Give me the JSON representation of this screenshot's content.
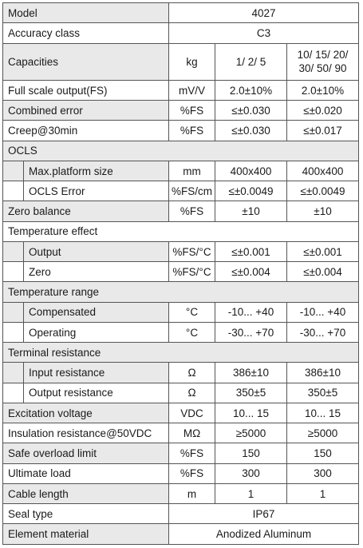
{
  "colors": {
    "label_shade": "#e9e9e9",
    "grid": "#555555",
    "text": "#1a1a1a"
  },
  "table": {
    "rows": [
      {
        "type": "full",
        "label": "Model",
        "value": "4027",
        "shaded": true
      },
      {
        "type": "full",
        "label": "Accuracy class",
        "value": "C3",
        "shaded": false
      },
      {
        "type": "split",
        "label": "Capacities",
        "unit": "kg",
        "v1": "1/ 2/ 5",
        "v2": "10/ 15/ 20/ 30/ 50/ 90",
        "shaded": true
      },
      {
        "type": "split",
        "label": "Full scale output(FS)",
        "unit": "mV/V",
        "v1": "2.0±10%",
        "v2": "2.0±10%",
        "shaded": false
      },
      {
        "type": "split",
        "label": "Combined error",
        "unit": "%FS",
        "v1": "≤±0.030",
        "v2": "≤±0.020",
        "shaded": true
      },
      {
        "type": "split",
        "label": "Creep@30min",
        "unit": "%FS",
        "v1": "≤±0.030",
        "v2": "≤±0.017",
        "shaded": false
      },
      {
        "type": "section",
        "label": "OCLS",
        "shaded": true
      },
      {
        "type": "sub",
        "label": "Max.platform size",
        "unit": "mm",
        "v1": "400x400",
        "v2": "400x400",
        "shaded": true
      },
      {
        "type": "sub",
        "label": "OCLS Error",
        "unit": "%FS/cm",
        "v1": "≤±0.0049",
        "v2": "≤±0.0049",
        "shaded": false
      },
      {
        "type": "split",
        "label": "Zero balance",
        "unit": "%FS",
        "v1": "±10",
        "v2": "±10",
        "shaded": true
      },
      {
        "type": "section",
        "label": "Temperature effect",
        "shaded": false
      },
      {
        "type": "sub",
        "label": "Output",
        "unit": "%FS/°C",
        "v1": "≤±0.001",
        "v2": "≤±0.001",
        "shaded": true
      },
      {
        "type": "sub",
        "label": "Zero",
        "unit": "%FS/°C",
        "v1": "≤±0.004",
        "v2": "≤±0.004",
        "shaded": false
      },
      {
        "type": "section",
        "label": "Temperature range",
        "shaded": true
      },
      {
        "type": "sub",
        "label": "Compensated",
        "unit": "°C",
        "v1": "-10... +40",
        "v2": "-10... +40",
        "shaded": true
      },
      {
        "type": "sub",
        "label": "Operating",
        "unit": "°C",
        "v1": "-30... +70",
        "v2": "-30... +70",
        "shaded": false
      },
      {
        "type": "section",
        "label": "Terminal resistance",
        "shaded": true
      },
      {
        "type": "sub",
        "label": "Input resistance",
        "unit": "Ω",
        "v1": "386±10",
        "v2": "386±10",
        "shaded": true
      },
      {
        "type": "sub",
        "label": "Output resistance",
        "unit": "Ω",
        "v1": "350±5",
        "v2": "350±5",
        "shaded": false
      },
      {
        "type": "split",
        "label": "Excitation voltage",
        "unit": "VDC",
        "v1": "10... 15",
        "v2": "10... 15",
        "shaded": true
      },
      {
        "type": "split",
        "label": "Insulation resistance@50VDC",
        "unit": "MΩ",
        "v1": "≥5000",
        "v2": "≥5000",
        "shaded": false
      },
      {
        "type": "split",
        "label": "Safe overload limit",
        "unit": "%FS",
        "v1": "150",
        "v2": "150",
        "shaded": true
      },
      {
        "type": "split",
        "label": "Ultimate load",
        "unit": "%FS",
        "v1": "300",
        "v2": "300",
        "shaded": false
      },
      {
        "type": "split",
        "label": "Cable length",
        "unit": "m",
        "v1": "1",
        "v2": "1",
        "shaded": true
      },
      {
        "type": "full",
        "label": "Seal type",
        "value": "IP67",
        "shaded": false
      },
      {
        "type": "full",
        "label": "Element material",
        "value": "Anodized Aluminum",
        "shaded": true
      }
    ]
  }
}
